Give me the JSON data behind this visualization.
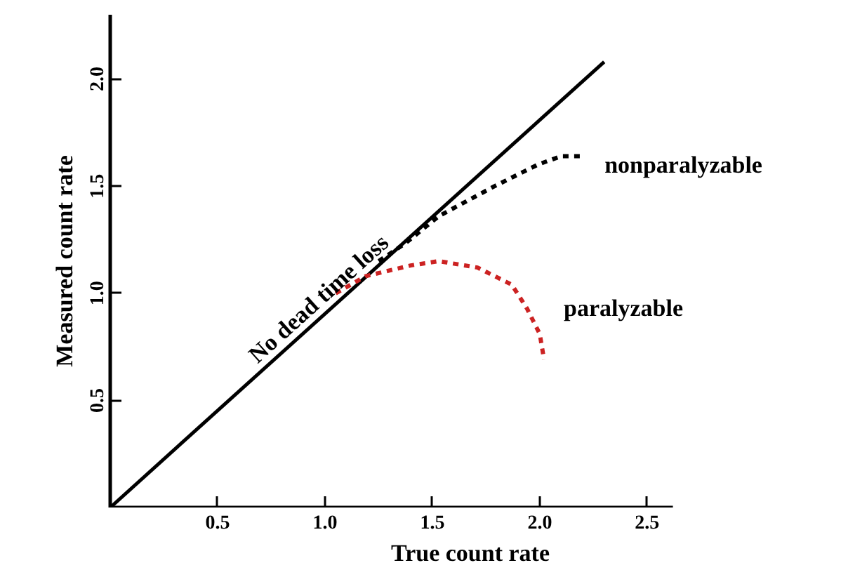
{
  "chart_data": {
    "type": "line",
    "xlabel": "True count rate",
    "ylabel": "Measured count rate",
    "xlim": [
      0,
      2.62
    ],
    "ylim": [
      0,
      2.3
    ],
    "xticks": [
      0.5,
      {
        "value": 1,
        "label": "1.0"
      },
      1.5,
      {
        "value": 2,
        "label": "2.0"
      },
      2.5
    ],
    "yticks": [
      0.5,
      {
        "value": 1,
        "label": "1.0"
      },
      1.5,
      {
        "value": 2,
        "label": "2.0"
      }
    ],
    "grid": false,
    "marker": "none",
    "series": [
      {
        "name": "No dead time loss",
        "color": "#000000",
        "line_style": "solid",
        "x": [
          0,
          2.3
        ],
        "values": [
          0,
          2.08
        ]
      },
      {
        "name": "nonparalyzable",
        "color": "#000000",
        "line_style": "dashed",
        "x": [
          1.25,
          1.37,
          1.53,
          1.79,
          1.99,
          2.1,
          2.21
        ],
        "values": [
          1.15,
          1.23,
          1.36,
          1.5,
          1.6,
          1.64,
          1.64
        ]
      },
      {
        "name": "paralyzable",
        "color": "#cc2222",
        "line_style": "dashed",
        "x": [
          1.05,
          1.19,
          1.4,
          1.53,
          1.71,
          1.87,
          1.94,
          2.0,
          2.02
        ],
        "values": [
          1.0,
          1.08,
          1.13,
          1.15,
          1.12,
          1.04,
          0.93,
          0.81,
          0.69
        ]
      }
    ]
  }
}
